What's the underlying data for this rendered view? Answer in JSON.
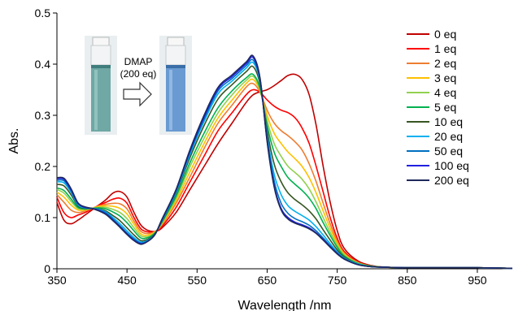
{
  "chart_data": {
    "type": "line",
    "title": "",
    "xlabel": "Wavelength /nm",
    "ylabel": "Abs.",
    "xlim": [
      350,
      1000
    ],
    "ylim": [
      0,
      0.5
    ],
    "xticks": [
      350,
      450,
      550,
      650,
      750,
      850,
      950
    ],
    "xtick_labels": [
      "350",
      "450",
      "550",
      "650",
      "750",
      "850",
      "950"
    ],
    "yticks": [
      0,
      0.1,
      0.2,
      0.3,
      0.4,
      0.5
    ],
    "ytick_labels": [
      "0",
      "0.1",
      "0.2",
      "0.3",
      "0.4",
      "0.5"
    ],
    "grid": false,
    "legend_position": "top-right",
    "annotation": {
      "text_line1": "DMAP",
      "text_line2": "(200 eq)",
      "arrow_icon": "right-arrow-icon",
      "before_image": "cuvette-green-solution",
      "after_image": "cuvette-blue-solution"
    },
    "series": [
      {
        "name": "0 eq",
        "color": "#c00000",
        "x": [
          350,
          360,
          370,
          380,
          390,
          400,
          410,
          420,
          430,
          440,
          450,
          460,
          470,
          480,
          490,
          500,
          520,
          540,
          560,
          580,
          600,
          620,
          630,
          640,
          650,
          660,
          670,
          680,
          690,
          700,
          710,
          720,
          730,
          740,
          750,
          760,
          780,
          800,
          820,
          850,
          900,
          950,
          1000
        ],
        "y": [
          0.13,
          0.095,
          0.088,
          0.095,
          0.105,
          0.115,
          0.125,
          0.135,
          0.148,
          0.151,
          0.14,
          0.11,
          0.085,
          0.075,
          0.073,
          0.08,
          0.11,
          0.155,
          0.2,
          0.245,
          0.285,
          0.325,
          0.34,
          0.346,
          0.35,
          0.358,
          0.368,
          0.378,
          0.38,
          0.37,
          0.34,
          0.28,
          0.2,
          0.13,
          0.075,
          0.04,
          0.015,
          0.006,
          0.003,
          0.002,
          0.002,
          0.002,
          0.001
        ]
      },
      {
        "name": "1 eq",
        "color": "#ff0000",
        "x": [
          350,
          360,
          370,
          380,
          390,
          400,
          410,
          420,
          430,
          440,
          450,
          460,
          470,
          480,
          490,
          500,
          520,
          540,
          560,
          580,
          600,
          620,
          630,
          640,
          650,
          660,
          670,
          680,
          690,
          700,
          710,
          720,
          730,
          740,
          750,
          760,
          780,
          800,
          820,
          850,
          900,
          950,
          1000
        ],
        "y": [
          0.14,
          0.11,
          0.1,
          0.105,
          0.11,
          0.117,
          0.124,
          0.13,
          0.136,
          0.138,
          0.128,
          0.1,
          0.078,
          0.072,
          0.073,
          0.083,
          0.12,
          0.17,
          0.22,
          0.27,
          0.305,
          0.34,
          0.35,
          0.345,
          0.33,
          0.318,
          0.31,
          0.305,
          0.295,
          0.275,
          0.245,
          0.2,
          0.15,
          0.1,
          0.06,
          0.034,
          0.013,
          0.005,
          0.003,
          0.002,
          0.002,
          0.002,
          0.001
        ]
      },
      {
        "name": "2 eq",
        "color": "#ed7d31",
        "x": [
          350,
          360,
          370,
          380,
          390,
          400,
          410,
          420,
          430,
          440,
          450,
          460,
          470,
          480,
          490,
          500,
          520,
          540,
          560,
          580,
          600,
          620,
          630,
          640,
          650,
          660,
          670,
          680,
          690,
          700,
          710,
          720,
          730,
          740,
          750,
          760,
          780,
          800,
          820,
          850,
          900,
          950,
          1000
        ],
        "y": [
          0.145,
          0.13,
          0.115,
          0.11,
          0.113,
          0.118,
          0.123,
          0.126,
          0.128,
          0.127,
          0.117,
          0.093,
          0.073,
          0.069,
          0.073,
          0.086,
          0.128,
          0.18,
          0.235,
          0.285,
          0.32,
          0.355,
          0.362,
          0.345,
          0.31,
          0.285,
          0.27,
          0.26,
          0.248,
          0.232,
          0.205,
          0.17,
          0.128,
          0.088,
          0.054,
          0.031,
          0.012,
          0.005,
          0.003,
          0.002,
          0.002,
          0.002,
          0.001
        ]
      },
      {
        "name": "3 eq",
        "color": "#ffc000",
        "x": [
          350,
          360,
          370,
          380,
          390,
          400,
          410,
          420,
          430,
          440,
          450,
          460,
          470,
          480,
          490,
          500,
          520,
          540,
          560,
          580,
          600,
          620,
          630,
          640,
          650,
          660,
          670,
          680,
          690,
          700,
          710,
          720,
          730,
          740,
          750,
          760,
          780,
          800,
          820,
          850,
          900,
          950,
          1000
        ],
        "y": [
          0.15,
          0.14,
          0.125,
          0.115,
          0.115,
          0.118,
          0.122,
          0.123,
          0.122,
          0.118,
          0.107,
          0.087,
          0.068,
          0.066,
          0.072,
          0.088,
          0.133,
          0.19,
          0.245,
          0.295,
          0.33,
          0.362,
          0.37,
          0.348,
          0.3,
          0.265,
          0.245,
          0.228,
          0.215,
          0.2,
          0.178,
          0.148,
          0.113,
          0.079,
          0.05,
          0.029,
          0.011,
          0.005,
          0.003,
          0.002,
          0.002,
          0.002,
          0.001
        ]
      },
      {
        "name": "4 eq",
        "color": "#92d050",
        "x": [
          350,
          360,
          370,
          380,
          390,
          400,
          410,
          420,
          430,
          440,
          450,
          460,
          470,
          480,
          490,
          500,
          520,
          540,
          560,
          580,
          600,
          620,
          630,
          640,
          650,
          660,
          670,
          680,
          690,
          700,
          710,
          720,
          730,
          740,
          750,
          760,
          780,
          800,
          820,
          850,
          900,
          950,
          1000
        ],
        "y": [
          0.155,
          0.148,
          0.132,
          0.118,
          0.116,
          0.118,
          0.12,
          0.12,
          0.116,
          0.11,
          0.098,
          0.08,
          0.064,
          0.063,
          0.071,
          0.09,
          0.138,
          0.2,
          0.255,
          0.305,
          0.34,
          0.368,
          0.376,
          0.35,
          0.29,
          0.245,
          0.22,
          0.2,
          0.188,
          0.175,
          0.156,
          0.13,
          0.1,
          0.071,
          0.046,
          0.027,
          0.011,
          0.005,
          0.003,
          0.002,
          0.002,
          0.002,
          0.001
        ]
      },
      {
        "name": "5 eq",
        "color": "#00b050",
        "x": [
          350,
          360,
          370,
          380,
          390,
          400,
          410,
          420,
          430,
          440,
          450,
          460,
          470,
          480,
          490,
          500,
          520,
          540,
          560,
          580,
          600,
          620,
          630,
          640,
          650,
          660,
          670,
          680,
          690,
          700,
          710,
          720,
          730,
          740,
          750,
          760,
          780,
          800,
          820,
          850,
          900,
          950,
          1000
        ],
        "y": [
          0.158,
          0.153,
          0.137,
          0.12,
          0.117,
          0.118,
          0.119,
          0.117,
          0.111,
          0.103,
          0.09,
          0.074,
          0.06,
          0.061,
          0.07,
          0.091,
          0.142,
          0.208,
          0.265,
          0.315,
          0.348,
          0.373,
          0.38,
          0.352,
          0.28,
          0.228,
          0.2,
          0.178,
          0.165,
          0.153,
          0.138,
          0.117,
          0.09,
          0.065,
          0.042,
          0.025,
          0.01,
          0.005,
          0.003,
          0.002,
          0.002,
          0.002,
          0.001
        ]
      },
      {
        "name": "10 eq",
        "color": "#375623",
        "x": [
          350,
          360,
          370,
          380,
          390,
          400,
          410,
          420,
          430,
          440,
          450,
          460,
          470,
          480,
          490,
          500,
          520,
          540,
          560,
          580,
          600,
          620,
          630,
          640,
          650,
          660,
          670,
          680,
          690,
          700,
          710,
          720,
          730,
          740,
          750,
          760,
          780,
          800,
          820,
          850,
          900,
          950,
          1000
        ],
        "y": [
          0.165,
          0.162,
          0.145,
          0.123,
          0.118,
          0.118,
          0.117,
          0.113,
          0.104,
          0.094,
          0.08,
          0.066,
          0.055,
          0.058,
          0.069,
          0.093,
          0.148,
          0.218,
          0.28,
          0.332,
          0.36,
          0.385,
          0.395,
          0.36,
          0.27,
          0.205,
          0.17,
          0.148,
          0.135,
          0.125,
          0.113,
          0.097,
          0.076,
          0.056,
          0.037,
          0.023,
          0.009,
          0.004,
          0.003,
          0.002,
          0.002,
          0.002,
          0.001
        ]
      },
      {
        "name": "20 eq",
        "color": "#00b0f0",
        "x": [
          350,
          360,
          370,
          380,
          390,
          400,
          410,
          420,
          430,
          440,
          450,
          460,
          470,
          480,
          490,
          500,
          520,
          540,
          560,
          580,
          600,
          620,
          630,
          640,
          650,
          660,
          670,
          680,
          690,
          700,
          710,
          720,
          730,
          740,
          750,
          760,
          780,
          800,
          820,
          850,
          900,
          950,
          1000
        ],
        "y": [
          0.17,
          0.168,
          0.15,
          0.125,
          0.119,
          0.118,
          0.116,
          0.111,
          0.1,
          0.088,
          0.074,
          0.061,
          0.052,
          0.056,
          0.068,
          0.094,
          0.15,
          0.224,
          0.288,
          0.342,
          0.367,
          0.392,
          0.403,
          0.365,
          0.26,
          0.185,
          0.145,
          0.123,
          0.112,
          0.104,
          0.095,
          0.082,
          0.066,
          0.049,
          0.033,
          0.021,
          0.009,
          0.004,
          0.003,
          0.002,
          0.002,
          0.002,
          0.001
        ]
      },
      {
        "name": "50 eq",
        "color": "#0070c0",
        "x": [
          350,
          360,
          370,
          380,
          390,
          400,
          410,
          420,
          430,
          440,
          450,
          460,
          470,
          480,
          490,
          500,
          520,
          540,
          560,
          580,
          600,
          620,
          630,
          640,
          650,
          660,
          670,
          680,
          690,
          700,
          710,
          720,
          730,
          740,
          750,
          760,
          780,
          800,
          820,
          850,
          900,
          950,
          1000
        ],
        "y": [
          0.173,
          0.172,
          0.153,
          0.127,
          0.12,
          0.118,
          0.115,
          0.109,
          0.097,
          0.084,
          0.07,
          0.058,
          0.05,
          0.055,
          0.068,
          0.095,
          0.152,
          0.228,
          0.293,
          0.348,
          0.372,
          0.397,
          0.408,
          0.368,
          0.255,
          0.172,
          0.128,
          0.108,
          0.098,
          0.092,
          0.085,
          0.074,
          0.06,
          0.045,
          0.031,
          0.02,
          0.008,
          0.004,
          0.003,
          0.002,
          0.002,
          0.002,
          0.001
        ]
      },
      {
        "name": "100 eq",
        "color": "#2020e0",
        "x": [
          350,
          360,
          370,
          380,
          390,
          400,
          410,
          420,
          430,
          440,
          450,
          460,
          470,
          480,
          490,
          500,
          520,
          540,
          560,
          580,
          600,
          620,
          630,
          640,
          650,
          660,
          670,
          680,
          690,
          700,
          710,
          720,
          730,
          740,
          750,
          760,
          780,
          800,
          820,
          850,
          900,
          950,
          1000
        ],
        "y": [
          0.176,
          0.175,
          0.155,
          0.128,
          0.12,
          0.118,
          0.114,
          0.107,
          0.095,
          0.082,
          0.068,
          0.056,
          0.049,
          0.054,
          0.067,
          0.096,
          0.154,
          0.231,
          0.297,
          0.352,
          0.376,
          0.401,
          0.413,
          0.37,
          0.25,
          0.163,
          0.118,
          0.1,
          0.091,
          0.086,
          0.08,
          0.07,
          0.057,
          0.043,
          0.03,
          0.019,
          0.008,
          0.004,
          0.003,
          0.002,
          0.002,
          0.002,
          0.001
        ]
      },
      {
        "name": "200 eq",
        "color": "#1f2a5c",
        "x": [
          350,
          360,
          370,
          380,
          390,
          400,
          410,
          420,
          430,
          440,
          450,
          460,
          470,
          480,
          490,
          500,
          520,
          540,
          560,
          580,
          600,
          620,
          630,
          640,
          650,
          660,
          670,
          680,
          690,
          700,
          710,
          720,
          730,
          740,
          750,
          760,
          780,
          800,
          820,
          850,
          900,
          950,
          1000
        ],
        "y": [
          0.178,
          0.177,
          0.157,
          0.129,
          0.121,
          0.118,
          0.113,
          0.106,
          0.094,
          0.081,
          0.067,
          0.055,
          0.048,
          0.054,
          0.067,
          0.097,
          0.155,
          0.233,
          0.3,
          0.355,
          0.379,
          0.404,
          0.416,
          0.372,
          0.248,
          0.16,
          0.115,
          0.097,
          0.089,
          0.084,
          0.078,
          0.069,
          0.056,
          0.042,
          0.029,
          0.019,
          0.008,
          0.004,
          0.003,
          0.002,
          0.002,
          0.002,
          0.001
        ]
      }
    ]
  }
}
